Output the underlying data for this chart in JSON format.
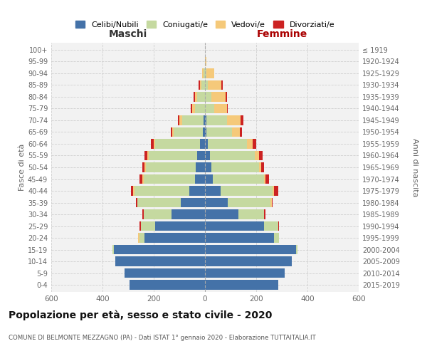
{
  "age_groups": [
    "0-4",
    "5-9",
    "10-14",
    "15-19",
    "20-24",
    "25-29",
    "30-34",
    "35-39",
    "40-44",
    "45-49",
    "50-54",
    "55-59",
    "60-64",
    "65-69",
    "70-74",
    "75-79",
    "80-84",
    "85-89",
    "90-94",
    "95-99",
    "100+"
  ],
  "birth_years": [
    "2015-2019",
    "2010-2014",
    "2005-2009",
    "2000-2004",
    "1995-1999",
    "1990-1994",
    "1985-1989",
    "1980-1984",
    "1975-1979",
    "1970-1974",
    "1965-1969",
    "1960-1964",
    "1955-1959",
    "1950-1954",
    "1945-1949",
    "1940-1944",
    "1935-1939",
    "1930-1934",
    "1925-1929",
    "1920-1924",
    "≤ 1919"
  ],
  "males": {
    "celibi": [
      295,
      315,
      350,
      355,
      235,
      195,
      130,
      95,
      60,
      40,
      35,
      30,
      20,
      8,
      5,
      0,
      0,
      0,
      0,
      0,
      0
    ],
    "coniugati": [
      0,
      0,
      0,
      5,
      20,
      55,
      110,
      170,
      215,
      200,
      195,
      190,
      175,
      115,
      85,
      40,
      30,
      15,
      5,
      0,
      0
    ],
    "vedovi": [
      0,
      0,
      0,
      0,
      5,
      0,
      0,
      0,
      5,
      5,
      5,
      5,
      5,
      5,
      10,
      10,
      10,
      5,
      5,
      0,
      0
    ],
    "divorziati": [
      0,
      0,
      0,
      0,
      0,
      5,
      5,
      5,
      10,
      10,
      10,
      10,
      10,
      5,
      5,
      5,
      5,
      5,
      0,
      0,
      0
    ]
  },
  "females": {
    "nubili": [
      285,
      310,
      340,
      355,
      270,
      230,
      130,
      90,
      60,
      30,
      25,
      20,
      10,
      5,
      5,
      0,
      0,
      0,
      0,
      0,
      0
    ],
    "coniugate": [
      0,
      0,
      0,
      5,
      20,
      55,
      100,
      165,
      205,
      200,
      185,
      175,
      155,
      100,
      80,
      35,
      25,
      10,
      5,
      0,
      0
    ],
    "vedove": [
      0,
      0,
      0,
      0,
      0,
      0,
      0,
      5,
      5,
      5,
      10,
      15,
      20,
      30,
      55,
      50,
      55,
      55,
      30,
      5,
      0
    ],
    "divorziate": [
      0,
      0,
      0,
      0,
      0,
      5,
      5,
      5,
      15,
      15,
      10,
      15,
      15,
      10,
      10,
      5,
      5,
      5,
      0,
      0,
      0
    ]
  },
  "colors": {
    "celibi": "#4472a8",
    "coniugati": "#c5d9a0",
    "vedovi": "#f5c97a",
    "divorziati": "#cc2222"
  },
  "legend_labels": [
    "Celibi/Nubili",
    "Coniugati/e",
    "Vedovi/e",
    "Divorziati/e"
  ],
  "title": "Popolazione per età, sesso e stato civile - 2020",
  "subtitle": "COMUNE DI BELMONTE MEZZAGNO (PA) - Dati ISTAT 1° gennaio 2020 - Elaborazione TUTTAITALIA.IT",
  "xlabel_left": "Maschi",
  "xlabel_right": "Femmine",
  "ylabel_left": "Fasce di età",
  "ylabel_right": "Anni di nascita",
  "xlim": 600,
  "bg_color": "#ffffff",
  "grid_color": "#cccccc",
  "bar_height": 0.8
}
